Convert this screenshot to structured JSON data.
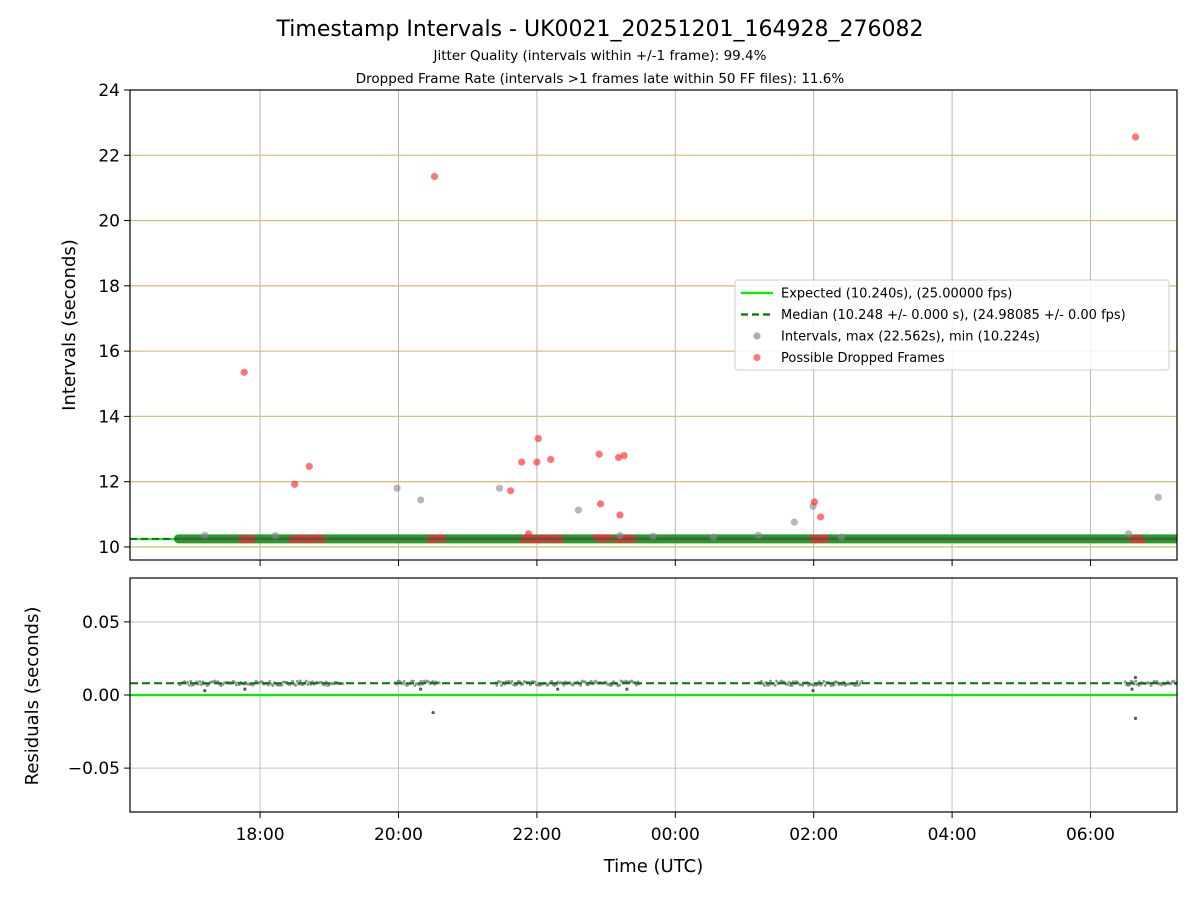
{
  "chart_data": {
    "type": "scatter",
    "title": "Timestamp Intervals - UK0021_20251201_164928_276082",
    "subtitle_lines": [
      "Jitter Quality (intervals within +/-1 frame): 99.4%",
      "Dropped Frame Rate (intervals >1 frames late within 50 FF files): 11.6%"
    ],
    "xlabel": "Time (UTC)",
    "x_unit": "hours since 00:00 on 2025-12-01 (UTC)",
    "xlim": [
      16.12,
      31.25
    ],
    "xticks": [
      {
        "value": 18,
        "label": "18:00"
      },
      {
        "value": 20,
        "label": "20:00"
      },
      {
        "value": 22,
        "label": "22:00"
      },
      {
        "value": 24,
        "label": "00:00"
      },
      {
        "value": 26,
        "label": "02:00"
      },
      {
        "value": 28,
        "label": "04:00"
      },
      {
        "value": 30,
        "label": "06:00"
      }
    ],
    "top": {
      "ylabel": "Intervals (seconds)",
      "ylim": [
        9.6,
        24
      ],
      "yticks": [
        10,
        12,
        14,
        16,
        18,
        20,
        22,
        24
      ],
      "expected": 10.24,
      "median": 10.248,
      "legend": {
        "position": "center-right",
        "entries": [
          {
            "kind": "line",
            "color": "#00ee00",
            "label": "Expected (10.240s), (25.00000 fps)"
          },
          {
            "kind": "dashed",
            "color": "#007700",
            "label": "Median (10.248 +/- 0.000 s), (24.98085 +/- 0.00 fps)"
          },
          {
            "kind": "dot",
            "color": "#999999",
            "label": "Intervals, max (22.562s), min (10.224s)"
          },
          {
            "kind": "dot",
            "color": "#ff5555",
            "label": "Possible Dropped Frames"
          }
        ]
      },
      "baseline": {
        "x_start": 16.82,
        "x_end": 31.25,
        "y": 10.248
      },
      "grey_points": [
        [
          17.2,
          10.36
        ],
        [
          18.22,
          10.35
        ],
        [
          19.98,
          11.8
        ],
        [
          20.32,
          11.44
        ],
        [
          21.46,
          11.8
        ],
        [
          22.6,
          11.13
        ],
        [
          23.2,
          10.35
        ],
        [
          23.68,
          10.33
        ],
        [
          24.55,
          10.3
        ],
        [
          25.2,
          10.36
        ],
        [
          25.72,
          10.76
        ],
        [
          25.99,
          11.25
        ],
        [
          26.4,
          10.3
        ],
        [
          30.55,
          10.4
        ],
        [
          30.98,
          11.52
        ]
      ],
      "red_points": [
        [
          17.77,
          15.35
        ],
        [
          18.5,
          11.92
        ],
        [
          18.71,
          12.47
        ],
        [
          20.52,
          21.35
        ],
        [
          21.62,
          11.72
        ],
        [
          21.78,
          12.6
        ],
        [
          21.88,
          10.4
        ],
        [
          22.0,
          12.6
        ],
        [
          22.02,
          13.32
        ],
        [
          22.2,
          12.68
        ],
        [
          22.9,
          12.84
        ],
        [
          22.92,
          11.32
        ],
        [
          23.18,
          12.74
        ],
        [
          23.2,
          10.98
        ],
        [
          23.26,
          12.8
        ],
        [
          26.01,
          11.38
        ],
        [
          26.1,
          10.92
        ],
        [
          30.65,
          22.56
        ]
      ],
      "red_cluster_ranges": [
        [
          17.72,
          17.9
        ],
        [
          18.45,
          18.9
        ],
        [
          20.45,
          20.65
        ],
        [
          21.8,
          22.35
        ],
        [
          22.85,
          23.05
        ],
        [
          23.15,
          23.42
        ],
        [
          25.98,
          26.2
        ],
        [
          30.6,
          30.75
        ]
      ],
      "cluster_value": 10.248
    },
    "bottom": {
      "ylabel": "Residuals (seconds)",
      "ylim": [
        -0.08,
        0.08
      ],
      "yticks": [
        {
          "value": 0.05,
          "label": "0.05"
        },
        {
          "value": 0.0,
          "label": "0.00"
        },
        {
          "value": -0.05,
          "label": "−0.05"
        }
      ],
      "expected_residual": 0.0,
      "median_residual": 0.008,
      "outliers": [
        [
          17.2,
          0.003
        ],
        [
          17.78,
          0.004
        ],
        [
          20.5,
          -0.012
        ],
        [
          20.32,
          0.004
        ],
        [
          22.3,
          0.004
        ],
        [
          23.3,
          0.004
        ],
        [
          25.99,
          0.003
        ],
        [
          30.65,
          -0.016
        ],
        [
          30.65,
          0.012
        ],
        [
          30.6,
          0.004
        ]
      ],
      "band_ranges": [
        [
          16.82,
          19.2
        ],
        [
          19.95,
          20.6
        ],
        [
          21.4,
          22.8
        ],
        [
          22.8,
          23.5
        ],
        [
          25.2,
          26.3
        ],
        [
          26.3,
          26.7
        ],
        [
          30.5,
          31.25
        ]
      ]
    }
  }
}
